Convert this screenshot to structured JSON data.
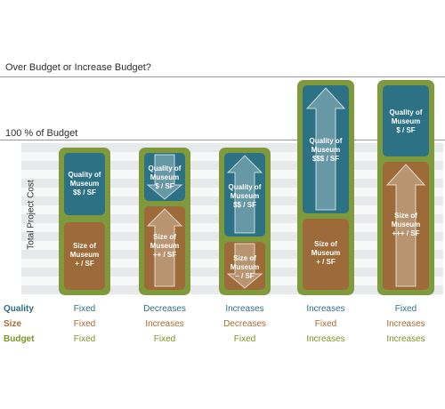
{
  "title": "Over Budget or Increase Budget?",
  "budget_line_label": "100 % of Budget",
  "y_axis_label": "Total Project Cost",
  "colors": {
    "quality": "#2d7184",
    "size": "#9d6b39",
    "budget": "#7f9a3c"
  },
  "row_labels": {
    "quality": "Quality",
    "size": "Size",
    "budget": "Budget"
  },
  "scenarios": [
    {
      "quality_box": "Quality of Museum $$ / SF",
      "quality_lines": [
        "Quality of",
        "Museum",
        "$$ / SF"
      ],
      "size_lines": [
        "Size of",
        "Museum",
        "+ / SF"
      ],
      "quality_arrow": "none",
      "size_arrow": "none",
      "quality": "Fixed",
      "size": "Fixed",
      "budget": "Fixed"
    },
    {
      "quality_lines": [
        "Quality of",
        "Museum",
        "$ / SF"
      ],
      "size_lines": [
        "Size of",
        "Museum",
        "++ / SF"
      ],
      "quality_arrow": "down",
      "size_arrow": "up",
      "quality": "Decreases",
      "size": "Increases",
      "budget": "Fixed"
    },
    {
      "quality_lines": [
        "Quality of",
        "Museum",
        "$$ / SF"
      ],
      "size_lines": [
        "Size of",
        "Museum",
        "– / SF"
      ],
      "quality_arrow": "up",
      "size_arrow": "down",
      "quality": "Increases",
      "size": "Decreases",
      "budget": "Fixed"
    },
    {
      "quality_lines": [
        "Quality of",
        "Museum",
        "$$$ / SF"
      ],
      "size_lines": [
        "Size of",
        "Museum",
        "+ / SF"
      ],
      "quality_arrow": "up",
      "size_arrow": "none",
      "quality": "Increases",
      "size": "Fixed",
      "budget": "Increases"
    },
    {
      "quality_lines": [
        "Quality of",
        "Museum",
        "$ / SF"
      ],
      "size_lines": [
        "Size of",
        "Museum",
        "+++ / SF"
      ],
      "quality_arrow": "none",
      "size_arrow": "up",
      "quality": "Fixed",
      "size": "Increases",
      "budget": "Increases"
    }
  ]
}
